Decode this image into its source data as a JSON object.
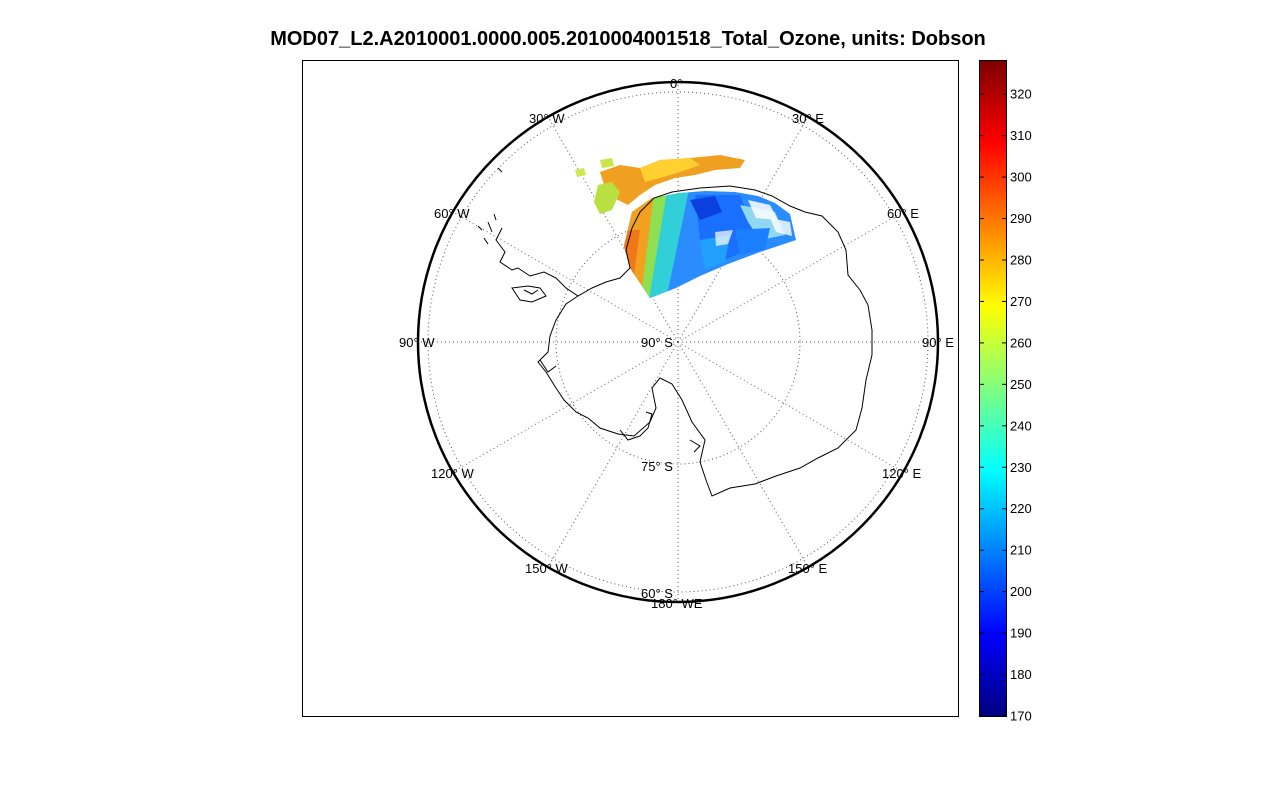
{
  "title": "MOD07_L2.A2010001.0000.005.2010004001518_Total_Ozone, units: Dobson",
  "colormap": {
    "name": "jet",
    "range": [
      170,
      328
    ],
    "ticks": [
      "170",
      "180",
      "190",
      "200",
      "210",
      "220",
      "230",
      "240",
      "250",
      "260",
      "270",
      "280",
      "290",
      "300",
      "310",
      "320"
    ]
  },
  "graticule": {
    "meridian_labels": [
      {
        "key": "m0",
        "text": "0°"
      },
      {
        "key": "m30e",
        "text": "30° E"
      },
      {
        "key": "m60e",
        "text": "60° E"
      },
      {
        "key": "m90e",
        "text": "90° E"
      },
      {
        "key": "m120e",
        "text": "120° E"
      },
      {
        "key": "m150e",
        "text": "150° E"
      },
      {
        "key": "m180",
        "text": "180° WE"
      },
      {
        "key": "m150w",
        "text": "150° W"
      },
      {
        "key": "m120w",
        "text": "120° W"
      },
      {
        "key": "m90w",
        "text": "90° W"
      },
      {
        "key": "m60w",
        "text": "60° W"
      },
      {
        "key": "m30w",
        "text": "30° W"
      }
    ],
    "parallel_labels": [
      {
        "key": "p90",
        "text": "90° S"
      },
      {
        "key": "p75",
        "text": "75° S"
      },
      {
        "key": "p60",
        "text": "60° S"
      }
    ]
  },
  "projection": "south polar stereographic",
  "palette": {
    "frame": "#000000",
    "grid": "#555555"
  }
}
